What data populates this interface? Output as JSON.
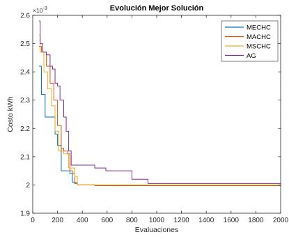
{
  "chart_data": {
    "type": "line",
    "title": "Evolución Mejor Solución",
    "xlabel": "Evaluaciones",
    "ylabel": "Costo kWh",
    "y_exponent_label": "×10",
    "y_exponent_power": "-3",
    "xlim": [
      0,
      2000
    ],
    "ylim": [
      0.0019,
      0.0026
    ],
    "x_ticks": [
      0,
      200,
      400,
      600,
      800,
      1000,
      1200,
      1400,
      1600,
      1800,
      2000
    ],
    "y_ticks": [
      0.0019,
      0.002,
      0.0021,
      0.0022,
      0.0023,
      0.0024,
      0.0025,
      0.0026
    ],
    "y_tick_labels": [
      "1.9",
      "2",
      "2.1",
      "2.2",
      "2.3",
      "2.4",
      "2.5",
      "2.6"
    ],
    "x_tick_labels": [
      "0",
      "200",
      "400",
      "600",
      "800",
      "1000",
      "1200",
      "1400",
      "1600",
      "1800",
      "2000"
    ],
    "grid": false,
    "legend_position": "top-right",
    "series": [
      {
        "name": "MECHC",
        "color": "#0072BD",
        "x": [
          50,
          70,
          70,
          100,
          100,
          120,
          120,
          180,
          180,
          200,
          200,
          230,
          230,
          245,
          245,
          300,
          300,
          320,
          320,
          340,
          340,
          360,
          360,
          500,
          500,
          2000
        ],
        "y": [
          0.00242,
          0.00242,
          0.00232,
          0.00232,
          0.00224,
          0.00224,
          0.00224,
          0.00224,
          0.00218,
          0.00218,
          0.00214,
          0.00214,
          0.00205,
          0.00205,
          0.00205,
          0.00205,
          0.00204,
          0.00204,
          0.00201,
          0.00201,
          0.002005,
          0.002005,
          0.002,
          0.002,
          0.001998,
          0.001998
        ]
      },
      {
        "name": "MACHC",
        "color": "#D95319",
        "x": [
          50,
          70,
          70,
          110,
          110,
          140,
          140,
          170,
          170,
          200,
          200,
          230,
          230,
          250,
          250,
          280,
          280,
          300,
          300,
          320,
          320,
          340,
          340,
          360,
          360,
          500,
          500,
          2000
        ],
        "y": [
          0.00249,
          0.00249,
          0.00247,
          0.00247,
          0.00242,
          0.00242,
          0.00236,
          0.00236,
          0.0023,
          0.0023,
          0.00221,
          0.00221,
          0.00213,
          0.00213,
          0.00212,
          0.00212,
          0.00211,
          0.00211,
          0.00205,
          0.00205,
          0.00204,
          0.00204,
          0.00201,
          0.00201,
          0.002,
          0.002,
          0.0019975,
          0.0019975
        ]
      },
      {
        "name": "MSCHC",
        "color": "#EDB120",
        "x": [
          50,
          60,
          60,
          90,
          90,
          120,
          120,
          150,
          150,
          180,
          180,
          210,
          210,
          230,
          230,
          250,
          250,
          290,
          290,
          320,
          320,
          340,
          340,
          360,
          360,
          600,
          600,
          2000
        ],
        "y": [
          0.00253,
          0.00253,
          0.00247,
          0.00247,
          0.0024,
          0.0024,
          0.00234,
          0.00234,
          0.00228,
          0.00228,
          0.00219,
          0.00219,
          0.00212,
          0.00212,
          0.00212,
          0.00212,
          0.00211,
          0.00211,
          0.00206,
          0.00206,
          0.00206,
          0.00206,
          0.00203,
          0.00203,
          0.002,
          0.002,
          0.002,
          0.002
        ]
      },
      {
        "name": "AG",
        "color": "#7E2F8E",
        "x": [
          50,
          60,
          60,
          80,
          80,
          110,
          110,
          140,
          140,
          160,
          160,
          180,
          180,
          200,
          200,
          220,
          220,
          250,
          250,
          270,
          270,
          290,
          290,
          310,
          310,
          330,
          330,
          350,
          350,
          500,
          500,
          590,
          590,
          800,
          800,
          930,
          930,
          2000
        ],
        "y": [
          0.00258,
          0.00258,
          0.0025,
          0.0025,
          0.00247,
          0.00247,
          0.00246,
          0.00246,
          0.00242,
          0.00242,
          0.00241,
          0.00241,
          0.00236,
          0.00236,
          0.00235,
          0.00235,
          0.0023,
          0.0023,
          0.00224,
          0.00224,
          0.00219,
          0.00219,
          0.00212,
          0.00212,
          0.00207,
          0.00207,
          0.00207,
          0.00207,
          0.00207,
          0.00207,
          0.00206,
          0.00206,
          0.00205,
          0.00205,
          0.00202,
          0.00202,
          0.002005,
          0.002005
        ]
      }
    ]
  }
}
